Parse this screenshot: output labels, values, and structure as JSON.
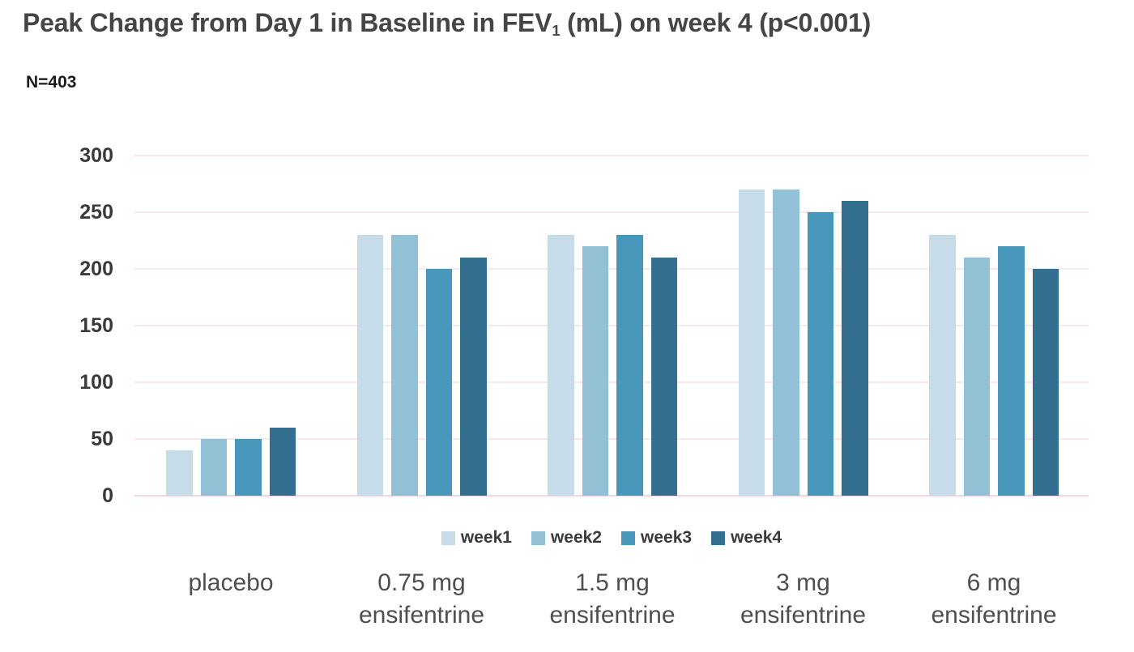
{
  "title": {
    "prefix": "Peak Change from Day 1 in Baseline in FEV",
    "subscript": "1",
    "suffix": " (mL) on week 4 (p<0.001)"
  },
  "n_label": "N=403",
  "chart_data": {
    "type": "bar",
    "title": "Peak Change from Day 1 in Baseline in FEV1 (mL) on week 4 (p<0.001)",
    "annotation": "N=403",
    "categories": [
      "placebo",
      "0.75 mg ensifentrine",
      "1.5 mg ensifentrine",
      "3 mg ensifentrine",
      "6 mg ensifentrine"
    ],
    "category_lines": [
      [
        "placebo"
      ],
      [
        "0.75 mg",
        "ensifentrine"
      ],
      [
        "1.5 mg",
        "ensifentrine"
      ],
      [
        "3 mg",
        "ensifentrine"
      ],
      [
        "6 mg",
        "ensifentrine"
      ]
    ],
    "series": [
      {
        "name": "week1",
        "color": "#c6dde9",
        "values": [
          40,
          230,
          230,
          270,
          230
        ]
      },
      {
        "name": "week2",
        "color": "#92c0d4",
        "values": [
          50,
          230,
          220,
          270,
          210
        ]
      },
      {
        "name": "week3",
        "color": "#4697b9",
        "values": [
          50,
          200,
          230,
          250,
          220
        ]
      },
      {
        "name": "week4",
        "color": "#336f8e",
        "values": [
          60,
          210,
          210,
          260,
          200
        ]
      }
    ],
    "xlabel": "",
    "ylabel": "",
    "ylim": [
      0,
      300
    ],
    "yticks": [
      300,
      250,
      200,
      150,
      100,
      50,
      0
    ],
    "grid": true,
    "gridline_color": "#f9e5ec",
    "baseline_color": "#f4d4de",
    "legend_position": "bottom"
  }
}
